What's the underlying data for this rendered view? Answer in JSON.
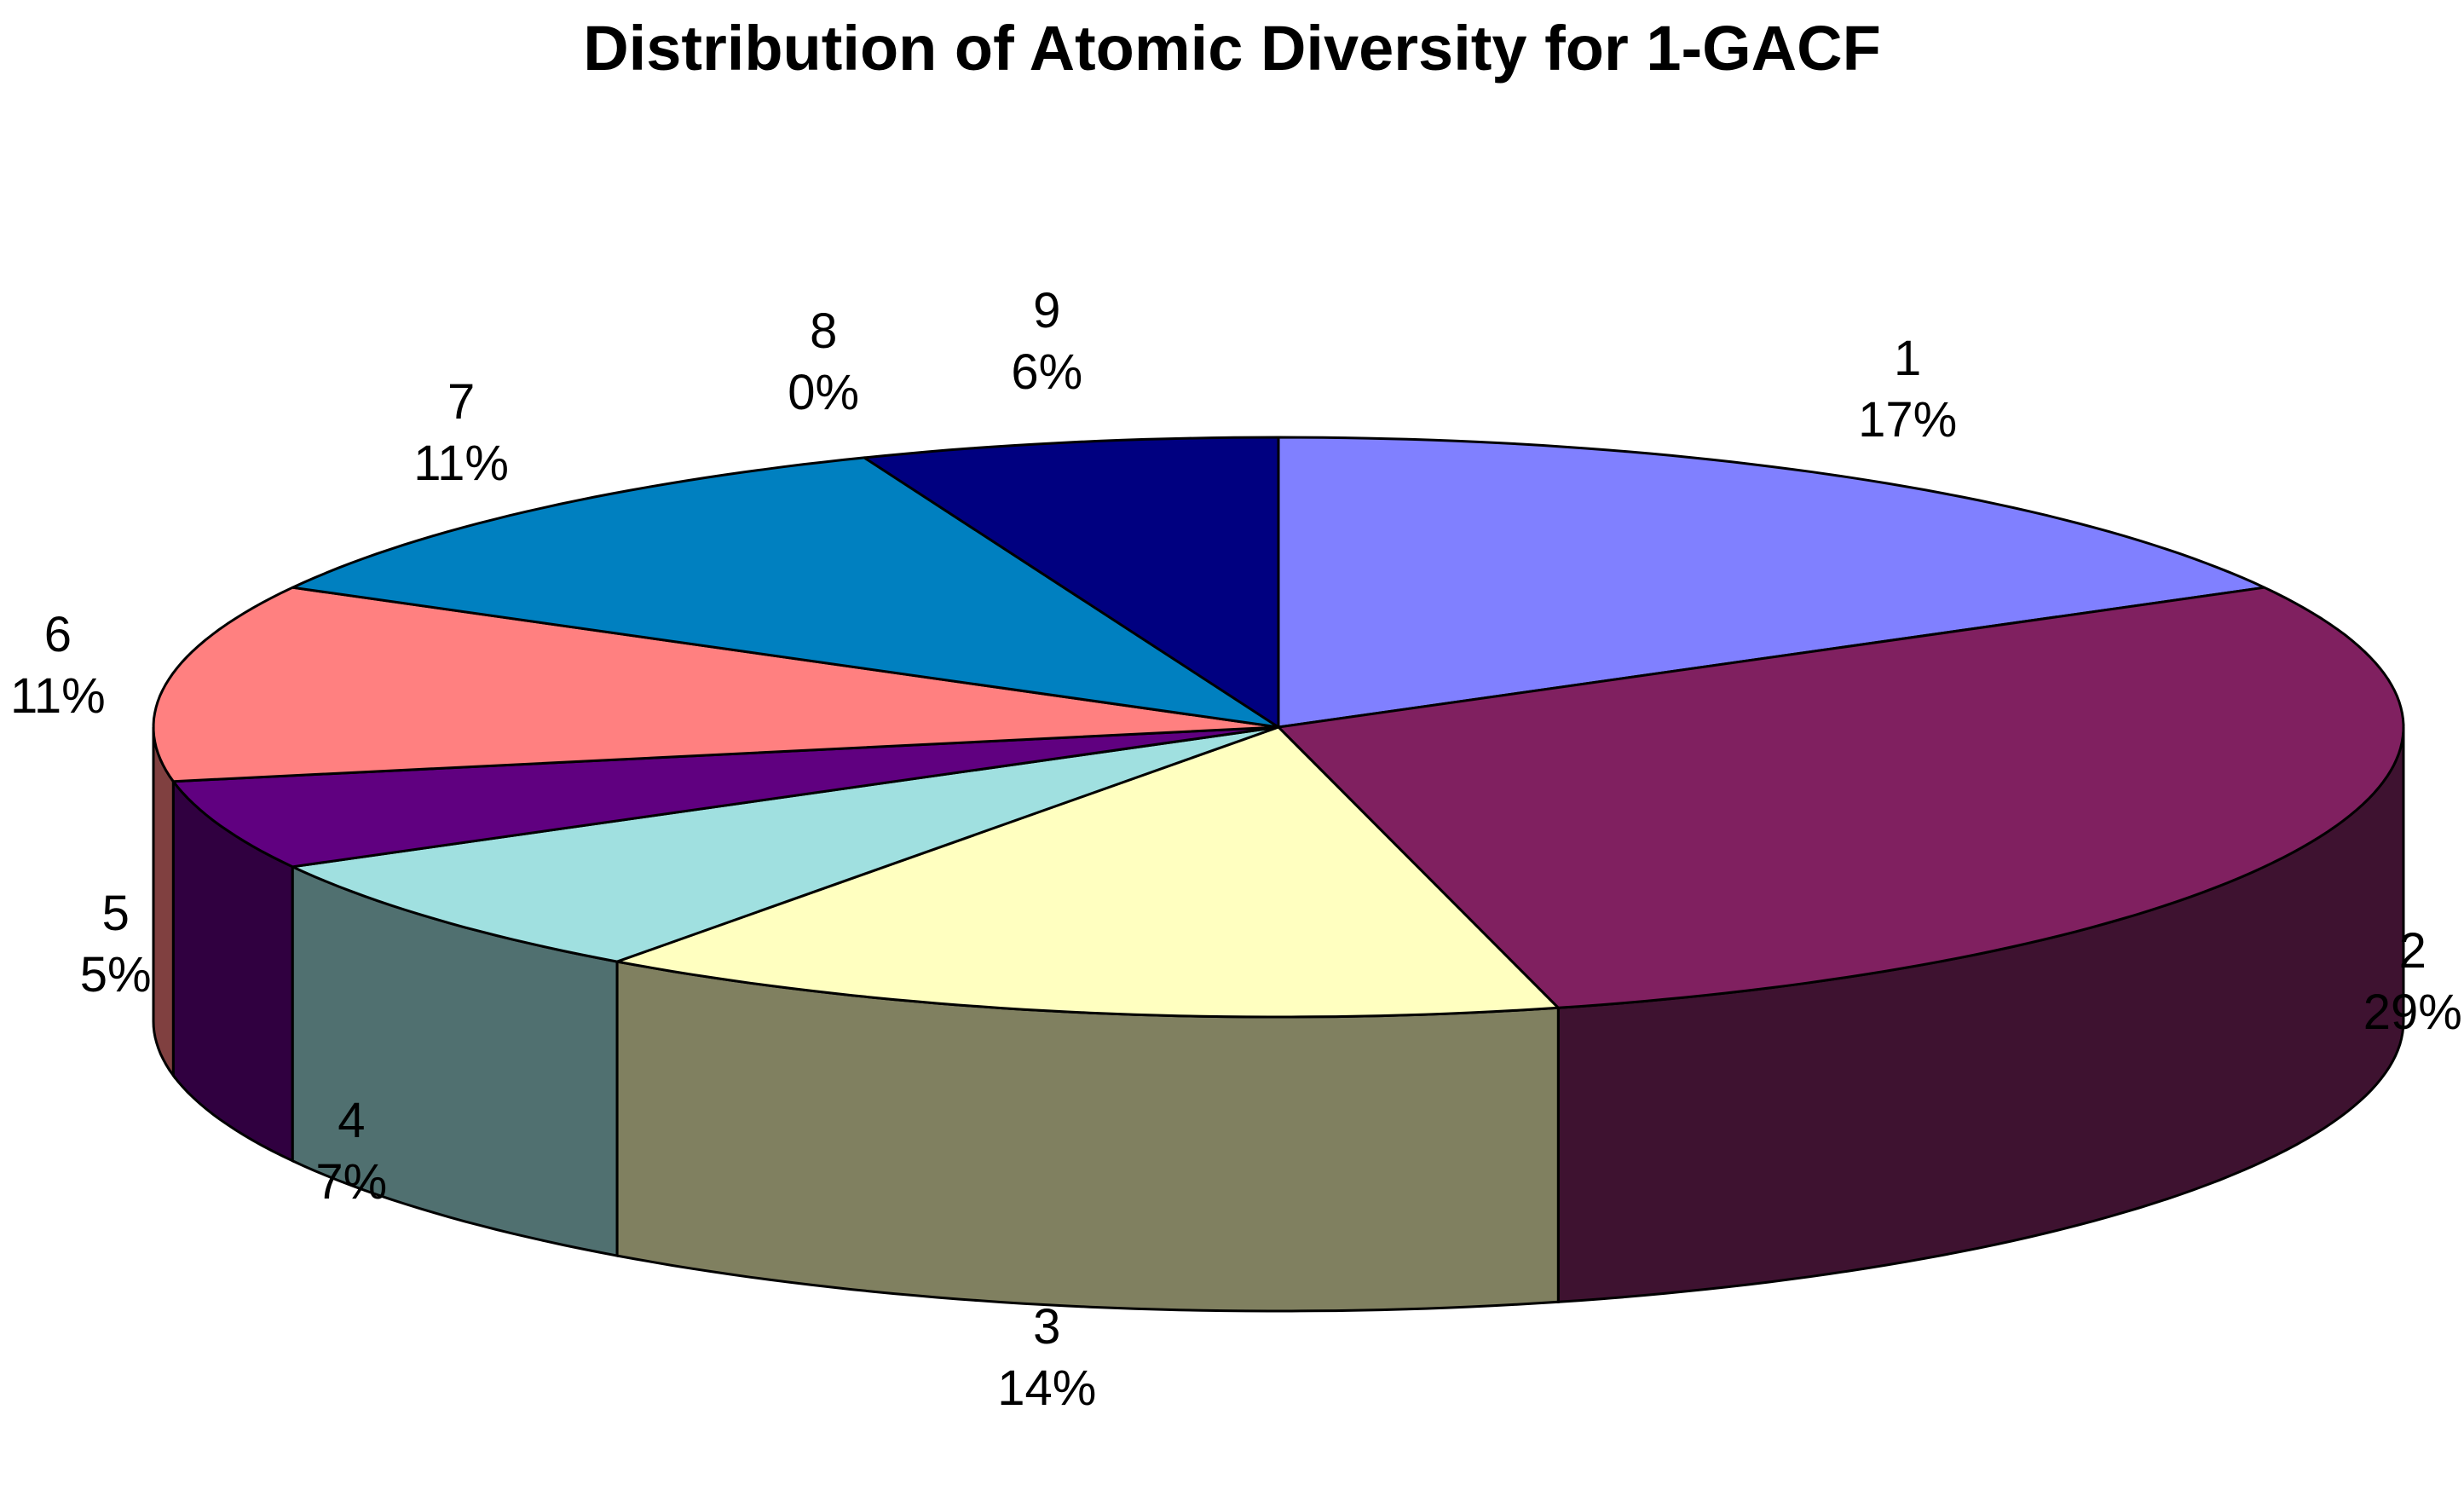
{
  "chart_data": {
    "type": "pie",
    "style": "3d",
    "title": "Distribution of Atomic Diversity for 1-GACF",
    "slices": [
      {
        "category": "1",
        "value": 17,
        "label": "17%",
        "color": "#8080ff",
        "side_color": "#5050a0"
      },
      {
        "category": "2",
        "value": 29,
        "label": "29%",
        "color": "#802060",
        "side_color": "#3e1230"
      },
      {
        "category": "3",
        "value": 14,
        "label": "14%",
        "color": "#ffffc0",
        "side_color": "#808060"
      },
      {
        "category": "4",
        "value": 7,
        "label": "7%",
        "color": "#a0e0e0",
        "side_color": "#507070"
      },
      {
        "category": "5",
        "value": 5,
        "label": "5%",
        "color": "#600080",
        "side_color": "#300040"
      },
      {
        "category": "6",
        "value": 11,
        "label": "11%",
        "color": "#ff8080",
        "side_color": "#804040"
      },
      {
        "category": "7",
        "value": 11,
        "label": "11%",
        "color": "#0080c0",
        "side_color": "#004060"
      },
      {
        "category": "8",
        "value": 0,
        "label": "0%",
        "color": "#c0c0ff",
        "side_color": "#606080"
      },
      {
        "category": "9",
        "value": 6,
        "label": "6%",
        "color": "#000080",
        "side_color": "#000040"
      }
    ],
    "legend": "none"
  }
}
